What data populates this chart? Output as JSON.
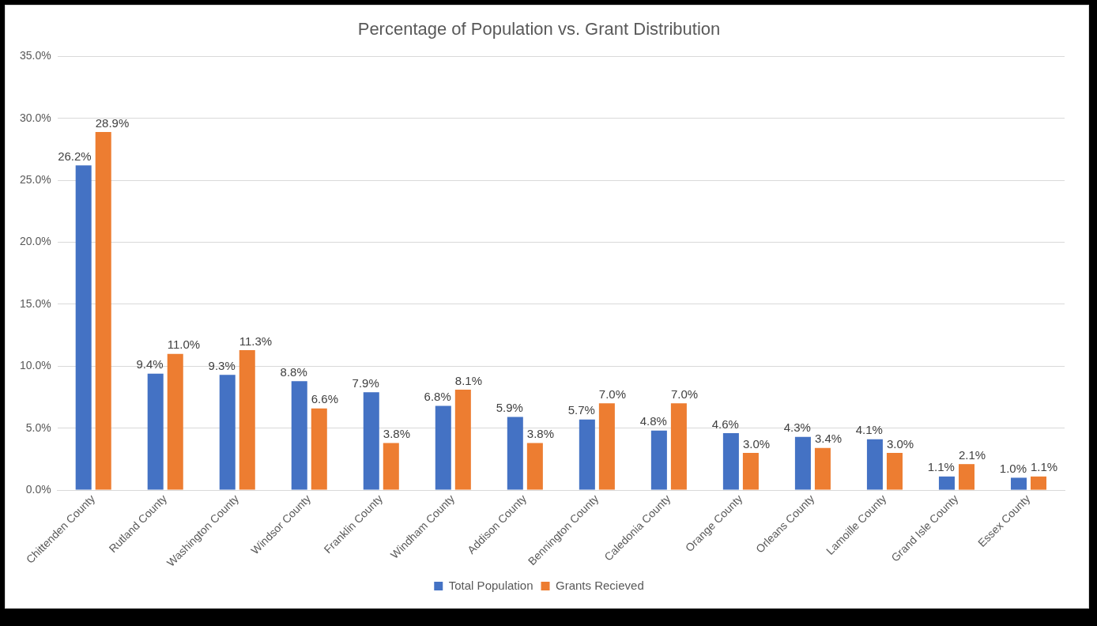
{
  "chart_data": {
    "type": "bar",
    "title": "Percentage of Population vs. Grant Distribution",
    "categories": [
      "Chittenden County",
      "Rutland County",
      "Washington County",
      "Windsor County",
      "Franklin County",
      "Windham County",
      "Addison County",
      "Bennington County",
      "Caledonia County",
      "Orange County",
      "Orleans County",
      "Lamoille County",
      "Grand Isle County",
      "Essex County"
    ],
    "series": [
      {
        "name": "Total Population",
        "color": "#4472c4",
        "values": [
          26.2,
          9.4,
          9.3,
          8.8,
          7.9,
          6.8,
          5.9,
          5.7,
          4.8,
          4.6,
          4.3,
          4.1,
          1.1,
          1.0
        ],
        "value_labels": [
          "26.2%",
          "9.4%",
          "9.3%",
          "8.8%",
          "7.9%",
          "6.8%",
          "5.9%",
          "5.7%",
          "4.8%",
          "4.6%",
          "4.3%",
          "4.1%",
          "1.1%",
          "1.0%"
        ]
      },
      {
        "name": "Grants Recieved",
        "color": "#ed7d31",
        "values": [
          28.9,
          11.0,
          11.3,
          6.6,
          3.8,
          8.1,
          3.8,
          7.0,
          7.0,
          3.0,
          3.4,
          3.0,
          2.1,
          1.1
        ],
        "value_labels": [
          "28.9%",
          "11.0%",
          "11.3%",
          "6.6%",
          "3.8%",
          "8.1%",
          "3.8%",
          "7.0%",
          "7.0%",
          "3.0%",
          "3.4%",
          "3.0%",
          "2.1%",
          "1.1%"
        ]
      }
    ],
    "ylim": [
      0,
      35
    ],
    "yticks": [
      {
        "value": 0,
        "label": "0.0%"
      },
      {
        "value": 5,
        "label": "5.0%"
      },
      {
        "value": 10,
        "label": "10.0%"
      },
      {
        "value": 15,
        "label": "15.0%"
      },
      {
        "value": 20,
        "label": "20.0%"
      },
      {
        "value": 25,
        "label": "25.0%"
      },
      {
        "value": 30,
        "label": "30.0%"
      },
      {
        "value": 35,
        "label": "35.0%"
      }
    ],
    "grid": "y",
    "legend": "bottom"
  }
}
